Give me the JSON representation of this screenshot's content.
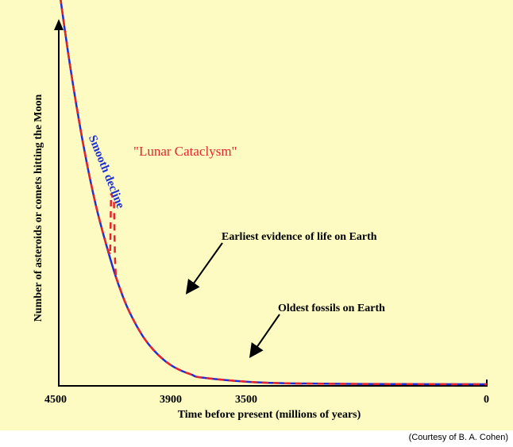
{
  "chart_data": {
    "type": "line",
    "x_axis_reversed": true,
    "xlabel": "Time before present (millions of years)",
    "ylabel": "Number of asteroids or comets hitting the Moon",
    "xlim": [
      4500,
      0
    ],
    "x_ticks": [
      "4500",
      "3900",
      "3500",
      "0"
    ],
    "y_ticks": [],
    "series": [
      {
        "name": "Smooth decline",
        "color": "#1f2fd6",
        "style": "solid",
        "x": [
          4500,
          4400,
          4300,
          4200,
          4100,
          4000,
          3900,
          3800,
          3700,
          3600,
          3500,
          3400,
          3300,
          3200,
          3100,
          3000,
          2500,
          2000,
          1000,
          0
        ],
        "y": [
          1.0,
          0.83,
          0.68,
          0.55,
          0.44,
          0.35,
          0.27,
          0.205,
          0.155,
          0.115,
          0.085,
          0.062,
          0.045,
          0.033,
          0.024,
          0.017,
          0.006,
          0.002,
          0.0005,
          0.0
        ]
      },
      {
        "name": "\"Lunar Cataclysm\"",
        "color": "#e8242a",
        "style": "dashed",
        "x": [
          4500,
          4400,
          4300,
          4200,
          4100,
          4000,
          3960,
          3950,
          3920,
          3910,
          3900,
          3800,
          3700,
          3600,
          3500,
          3400,
          3300,
          3200,
          3100,
          3000,
          2500,
          2000,
          1000,
          0
        ],
        "y": [
          1.0,
          0.83,
          0.68,
          0.55,
          0.44,
          0.35,
          0.325,
          0.48,
          0.46,
          0.32,
          0.27,
          0.205,
          0.155,
          0.115,
          0.085,
          0.062,
          0.045,
          0.033,
          0.024,
          0.017,
          0.006,
          0.002,
          0.0005,
          0.0
        ]
      }
    ],
    "annotations": [
      {
        "text": "Smooth decline",
        "color": "#1f2fd6"
      },
      {
        "text": "\"Lunar Cataclysm\"",
        "color": "#e8242a"
      },
      {
        "text": "Earliest evidence of life on Earth",
        "color": "#000000",
        "points_to_x": 3870
      },
      {
        "text": "Oldest fossils on Earth",
        "color": "#000000",
        "points_to_x": 3500
      }
    ],
    "credit": "(Courtesy of B. A. Cohen)",
    "grid": false,
    "legend": "none"
  }
}
